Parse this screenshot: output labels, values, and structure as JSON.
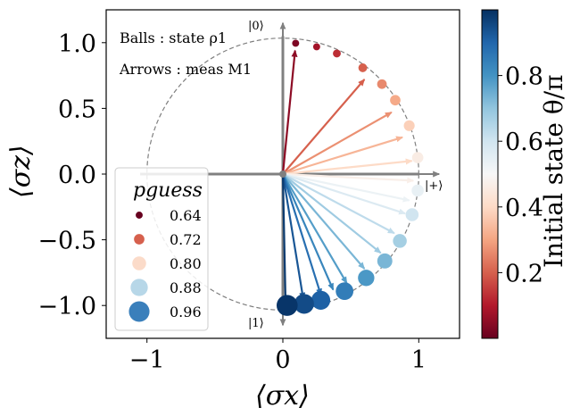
{
  "chart_data": {
    "type": "scatter",
    "xlabel": "⟨σx⟩",
    "ylabel": "⟨σz⟩",
    "xlim": [
      -1.3,
      1.3
    ],
    "ylim": [
      -1.25,
      1.25
    ],
    "x_ticks": [
      -1,
      0,
      1
    ],
    "x_tick_labels": [
      "−1",
      "0",
      "1"
    ],
    "y_ticks": [
      1.0,
      0.5,
      0.0,
      -0.5,
      -1.0
    ],
    "y_tick_labels": [
      "1.0",
      "0.5",
      "0.0",
      "−0.5",
      "−1.0"
    ],
    "grid": false,
    "annotations": {
      "balls": "Balls : state  ρ1",
      "arrows": "Arrows :  meas  M1",
      "ket0": "|0⟩",
      "ket1": "|1⟩",
      "ketplus": "|+⟩"
    },
    "legend": {
      "title": "pguess",
      "position": "lower-left",
      "entries": [
        "0.64",
        "0.72",
        "0.80",
        "0.88",
        "0.96"
      ],
      "values": [
        0.64,
        0.72,
        0.8,
        0.88,
        0.96
      ]
    },
    "colorbar": {
      "label": "Initial state  θ/π",
      "ticks": [
        0.2,
        0.4,
        0.6,
        0.8
      ],
      "tick_labels": [
        "0.2",
        "0.4",
        "0.6",
        "0.8"
      ],
      "range": [
        0.0,
        1.0
      ],
      "colormap": "RdBu"
    },
    "balls": [
      {
        "theta": 0.03,
        "pguess": 0.64
      },
      {
        "theta": 0.08,
        "pguess": 0.64
      },
      {
        "theta": 0.13,
        "pguess": 0.66
      },
      {
        "theta": 0.2,
        "pguess": 0.68
      },
      {
        "theta": 0.26,
        "pguess": 0.7
      },
      {
        "theta": 0.31,
        "pguess": 0.72
      },
      {
        "theta": 0.38,
        "pguess": 0.73
      },
      {
        "theta": 0.46,
        "pguess": 0.74
      },
      {
        "theta": 0.54,
        "pguess": 0.76
      },
      {
        "theta": 0.6,
        "pguess": 0.78
      },
      {
        "theta": 0.67,
        "pguess": 0.8
      },
      {
        "theta": 0.73,
        "pguess": 0.83
      },
      {
        "theta": 0.79,
        "pguess": 0.86
      },
      {
        "theta": 0.85,
        "pguess": 0.89
      },
      {
        "theta": 0.91,
        "pguess": 0.92
      },
      {
        "theta": 0.95,
        "pguess": 0.94
      },
      {
        "theta": 0.99,
        "pguess": 0.97
      }
    ],
    "arrows": [
      {
        "theta": 0.05,
        "x": 0.09,
        "z": 0.94
      },
      {
        "theta": 0.2,
        "x": 0.6,
        "z": 0.72
      },
      {
        "theta": 0.27,
        "x": 0.8,
        "z": 0.47
      },
      {
        "theta": 0.33,
        "x": 0.88,
        "z": 0.28
      },
      {
        "theta": 0.4,
        "x": 0.95,
        "z": 0.1
      },
      {
        "theta": 0.47,
        "x": 0.96,
        "z": -0.05
      },
      {
        "theta": 0.53,
        "x": 0.93,
        "z": -0.2
      },
      {
        "theta": 0.57,
        "x": 0.9,
        "z": -0.3
      },
      {
        "theta": 0.63,
        "x": 0.82,
        "z": -0.45
      },
      {
        "theta": 0.68,
        "x": 0.72,
        "z": -0.6
      },
      {
        "theta": 0.73,
        "x": 0.6,
        "z": -0.72
      },
      {
        "theta": 0.78,
        "x": 0.47,
        "z": -0.83
      },
      {
        "theta": 0.83,
        "x": 0.37,
        "z": -0.88
      },
      {
        "theta": 0.88,
        "x": 0.28,
        "z": -0.92
      },
      {
        "theta": 0.93,
        "x": 0.15,
        "z": -0.95
      },
      {
        "theta": 0.98,
        "x": 0.02,
        "z": -0.99
      }
    ]
  }
}
